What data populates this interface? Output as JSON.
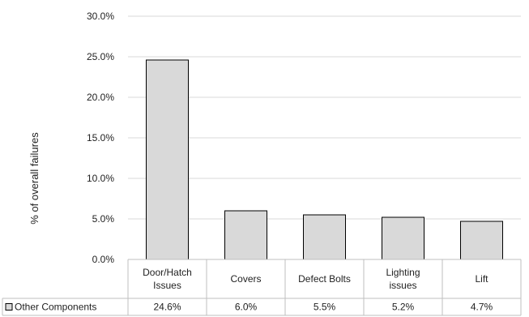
{
  "chart_data": {
    "type": "bar",
    "categories": [
      "Door/Hatch Issues",
      "Covers",
      "Defect Bolts",
      "Lighting issues",
      "Lift"
    ],
    "category_lines": [
      [
        "Door/Hatch",
        "Issues"
      ],
      [
        "Covers"
      ],
      [
        "Defect Bolts"
      ],
      [
        "Lighting",
        "issues"
      ],
      [
        "Lift"
      ]
    ],
    "series": [
      {
        "name": "Other Components",
        "values": [
          24.6,
          6.0,
          5.5,
          5.2,
          4.7
        ],
        "color": "#d9d9d9",
        "stroke": "#000000"
      }
    ],
    "value_labels": [
      "24.6%",
      "6.0%",
      "5.5%",
      "5.2%",
      "4.7%"
    ],
    "ylabel": "% of overall failures",
    "ylim": [
      0,
      30
    ],
    "yticks": [
      0,
      5,
      10,
      15,
      20,
      25,
      30
    ],
    "ytick_labels": [
      "0.0%",
      "5.0%",
      "10.0%",
      "15.0%",
      "20.0%",
      "25.0%",
      "30.0%"
    ],
    "grid": true,
    "legend": "data-table-left",
    "data_table": true
  }
}
